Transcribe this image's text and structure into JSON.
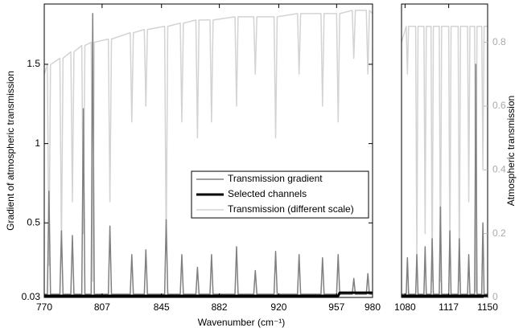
{
  "chart_data": [
    {
      "type": "line",
      "xlabel": "Wavenumber (cm⁻¹)",
      "ylabel": "Gradient of atmospheric transmission",
      "xlim": [
        770,
        980
      ],
      "xticks": [
        770,
        807,
        845,
        882,
        920,
        957,
        980
      ],
      "ylim": [
        0.03,
        1.88
      ],
      "yticks": [
        0.03,
        0.5,
        1,
        1.5
      ],
      "y2lim": [
        0,
        0.92
      ],
      "legend": "center right",
      "x": [
        770,
        772,
        773,
        774,
        780,
        781,
        782,
        787,
        788,
        789,
        794,
        795,
        796,
        800,
        801,
        802,
        811,
        812,
        813,
        825,
        826,
        827,
        834,
        835,
        836,
        847,
        848,
        849,
        857,
        858,
        859,
        867,
        868,
        869,
        876,
        877,
        878,
        892,
        893,
        894,
        904,
        905,
        906,
        917,
        918,
        919,
        932,
        933,
        934,
        947,
        948,
        949,
        957,
        958,
        959,
        967,
        968,
        969,
        976,
        977,
        978,
        980
      ],
      "series": [
        {
          "name": "Transmission gradient",
          "color": "#808080",
          "width": 1.5,
          "values": [
            0.05,
            0.05,
            0.7,
            0.05,
            0.05,
            0.45,
            0.05,
            0.05,
            0.42,
            0.05,
            0.05,
            1.22,
            0.05,
            0.05,
            1.82,
            0.05,
            0.05,
            0.48,
            0.05,
            0.05,
            0.3,
            0.05,
            0.05,
            0.33,
            0.05,
            0.05,
            0.52,
            0.05,
            0.05,
            0.3,
            0.05,
            0.05,
            0.22,
            0.05,
            0.05,
            0.3,
            0.05,
            0.05,
            0.35,
            0.05,
            0.05,
            0.2,
            0.05,
            0.05,
            0.32,
            0.05,
            0.05,
            0.3,
            0.05,
            0.05,
            0.28,
            0.05,
            0.05,
            0.3,
            0.05,
            0.05,
            0.15,
            0.05,
            0.05,
            0.18,
            0.05,
            0.05
          ]
        },
        {
          "name": "Selected channels",
          "color": "#000000",
          "width": 3,
          "values": [
            0.04,
            0.04,
            0.04,
            0.04,
            0.04,
            0.04,
            0.04,
            0.04,
            0.04,
            0.04,
            0.04,
            0.04,
            0.04,
            0.04,
            0.04,
            0.04,
            0.04,
            0.04,
            0.04,
            0.04,
            0.04,
            0.04,
            0.04,
            0.04,
            0.04,
            0.04,
            0.04,
            0.04,
            0.04,
            0.04,
            0.04,
            0.04,
            0.04,
            0.04,
            0.04,
            0.04,
            0.04,
            0.04,
            0.04,
            0.04,
            0.04,
            0.04,
            0.04,
            0.04,
            0.04,
            0.04,
            0.04,
            0.04,
            0.04,
            0.04,
            0.04,
            0.04,
            0.04,
            0.04,
            0.06,
            0.06,
            0.06,
            0.06,
            0.06,
            0.06,
            0.06,
            0.06
          ]
        },
        {
          "name": "Transmission (different scale)",
          "color": "#d3d3d3",
          "width": 1.5,
          "axis": "y2",
          "values": [
            0.7,
            0.73,
            0.1,
            0.73,
            0.75,
            0.15,
            0.75,
            0.77,
            0.3,
            0.77,
            0.79,
            0.2,
            0.79,
            0.8,
            0.05,
            0.8,
            0.81,
            0.3,
            0.81,
            0.83,
            0.55,
            0.83,
            0.84,
            0.6,
            0.84,
            0.85,
            0.15,
            0.85,
            0.86,
            0.55,
            0.86,
            0.87,
            0.5,
            0.87,
            0.87,
            0.55,
            0.87,
            0.88,
            0.6,
            0.88,
            0.88,
            0.7,
            0.88,
            0.88,
            0.5,
            0.88,
            0.89,
            0.7,
            0.89,
            0.89,
            0.6,
            0.89,
            0.89,
            0.55,
            0.89,
            0.9,
            0.75,
            0.9,
            0.9,
            0.7,
            0.9,
            0.89
          ]
        }
      ]
    },
    {
      "type": "line",
      "y2label": "Atmospheric transmission",
      "xlim": [
        1077,
        1150
      ],
      "xticks": [
        1080,
        1117,
        1150
      ],
      "ylim": [
        0.03,
        1.88
      ],
      "y2lim": [
        0,
        0.92
      ],
      "y2ticks": [
        0,
        0.2,
        0.4,
        0.6,
        0.8
      ],
      "x": [
        1077,
        1081,
        1082,
        1083,
        1089,
        1090,
        1091,
        1096,
        1097,
        1098,
        1102,
        1103,
        1104,
        1109,
        1110,
        1111,
        1117,
        1118,
        1119,
        1125,
        1126,
        1127,
        1133,
        1134,
        1135,
        1139,
        1140,
        1141,
        1145,
        1146,
        1147,
        1150
      ],
      "series": [
        {
          "color": "#808080",
          "width": 1.5,
          "values": [
            0.05,
            0.05,
            0.28,
            0.05,
            0.05,
            0.3,
            0.05,
            0.05,
            0.35,
            0.05,
            0.05,
            0.4,
            0.05,
            0.05,
            0.6,
            0.05,
            0.05,
            0.45,
            0.05,
            0.05,
            0.4,
            0.05,
            0.05,
            0.3,
            0.05,
            0.05,
            1.5,
            0.05,
            0.05,
            0.5,
            0.05,
            0.05
          ]
        },
        {
          "color": "#000000",
          "width": 3,
          "values": [
            0.04,
            0.04,
            0.04,
            0.04,
            0.04,
            0.04,
            0.04,
            0.04,
            0.04,
            0.04,
            0.04,
            0.04,
            0.04,
            0.04,
            0.04,
            0.04,
            0.04,
            0.04,
            0.04,
            0.04,
            0.04,
            0.04,
            0.04,
            0.04,
            0.04,
            0.04,
            0.04,
            0.04,
            0.04,
            0.04,
            0.04,
            0.04
          ]
        },
        {
          "color": "#d3d3d3",
          "width": 1.5,
          "axis": "y2",
          "values": [
            0.8,
            0.85,
            0.7,
            0.85,
            0.85,
            0.1,
            0.85,
            0.85,
            0.2,
            0.85,
            0.85,
            0.05,
            0.85,
            0.85,
            0.05,
            0.85,
            0.85,
            0.1,
            0.85,
            0.85,
            0.05,
            0.85,
            0.85,
            0.3,
            0.85,
            0.85,
            0.02,
            0.85,
            0.85,
            0.4,
            0.85,
            0.85
          ]
        }
      ]
    }
  ]
}
